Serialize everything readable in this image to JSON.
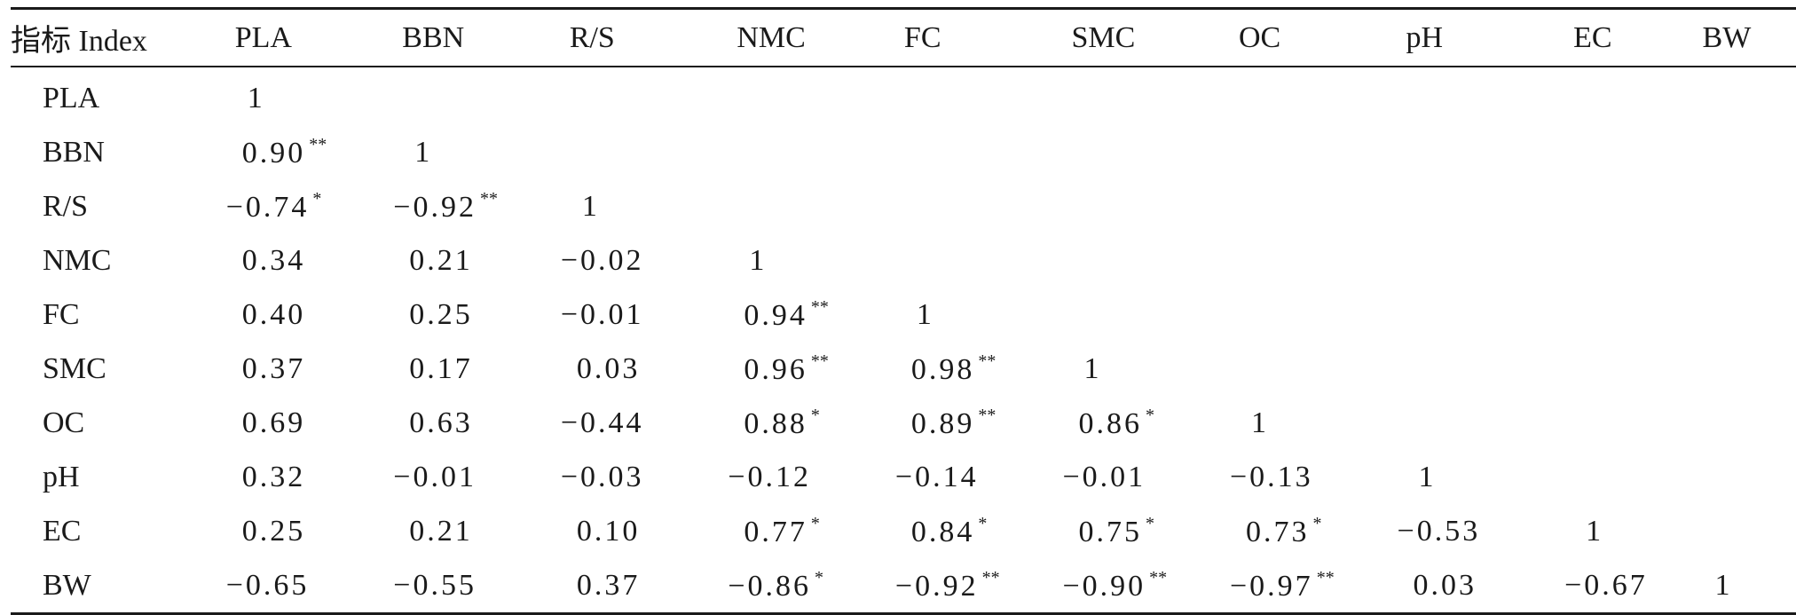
{
  "table": {
    "columns": [
      "指标 Index",
      "PLA",
      "BBN",
      "R/S",
      "NMC",
      "FC",
      "SMC",
      "OC",
      "pH",
      "EC",
      "BW"
    ],
    "rows": [
      {
        "label": "PLA",
        "cells": [
          [
            "1",
            ""
          ],
          [
            "",
            ""
          ],
          [
            "",
            ""
          ],
          [
            "",
            ""
          ],
          [
            "",
            ""
          ],
          [
            "",
            ""
          ],
          [
            "",
            ""
          ],
          [
            "",
            ""
          ],
          [
            "",
            ""
          ],
          [
            "",
            ""
          ]
        ]
      },
      {
        "label": "BBN",
        "cells": [
          [
            "0.90",
            "**"
          ],
          [
            "1",
            ""
          ],
          [
            "",
            ""
          ],
          [
            "",
            ""
          ],
          [
            "",
            ""
          ],
          [
            "",
            ""
          ],
          [
            "",
            ""
          ],
          [
            "",
            ""
          ],
          [
            "",
            ""
          ],
          [
            "",
            ""
          ]
        ]
      },
      {
        "label": "R/S",
        "cells": [
          [
            "−0.74",
            "*"
          ],
          [
            "−0.92",
            "**"
          ],
          [
            "1",
            ""
          ],
          [
            "",
            ""
          ],
          [
            "",
            ""
          ],
          [
            "",
            ""
          ],
          [
            "",
            ""
          ],
          [
            "",
            ""
          ],
          [
            "",
            ""
          ],
          [
            "",
            ""
          ]
        ]
      },
      {
        "label": "NMC",
        "cells": [
          [
            "0.34",
            ""
          ],
          [
            "0.21",
            ""
          ],
          [
            "−0.02",
            ""
          ],
          [
            "1",
            ""
          ],
          [
            "",
            ""
          ],
          [
            "",
            ""
          ],
          [
            "",
            ""
          ],
          [
            "",
            ""
          ],
          [
            "",
            ""
          ],
          [
            "",
            ""
          ]
        ]
      },
      {
        "label": "FC",
        "cells": [
          [
            "0.40",
            ""
          ],
          [
            "0.25",
            ""
          ],
          [
            "−0.01",
            ""
          ],
          [
            "0.94",
            "**"
          ],
          [
            "1",
            ""
          ],
          [
            "",
            ""
          ],
          [
            "",
            ""
          ],
          [
            "",
            ""
          ],
          [
            "",
            ""
          ],
          [
            "",
            ""
          ]
        ]
      },
      {
        "label": "SMC",
        "cells": [
          [
            "0.37",
            ""
          ],
          [
            "0.17",
            ""
          ],
          [
            "0.03",
            ""
          ],
          [
            "0.96",
            "**"
          ],
          [
            "0.98",
            "**"
          ],
          [
            "1",
            ""
          ],
          [
            "",
            ""
          ],
          [
            "",
            ""
          ],
          [
            "",
            ""
          ],
          [
            "",
            ""
          ]
        ]
      },
      {
        "label": "OC",
        "cells": [
          [
            "0.69",
            ""
          ],
          [
            "0.63",
            ""
          ],
          [
            "−0.44",
            ""
          ],
          [
            "0.88",
            "*"
          ],
          [
            "0.89",
            "**"
          ],
          [
            "0.86",
            "*"
          ],
          [
            "1",
            ""
          ],
          [
            "",
            ""
          ],
          [
            "",
            ""
          ],
          [
            "",
            ""
          ]
        ]
      },
      {
        "label": "pH",
        "cells": [
          [
            "0.32",
            ""
          ],
          [
            "−0.01",
            ""
          ],
          [
            "−0.03",
            ""
          ],
          [
            "−0.12",
            ""
          ],
          [
            "−0.14",
            ""
          ],
          [
            "−0.01",
            ""
          ],
          [
            "−0.13",
            ""
          ],
          [
            "1",
            ""
          ],
          [
            "",
            ""
          ],
          [
            "",
            ""
          ]
        ]
      },
      {
        "label": "EC",
        "cells": [
          [
            "0.25",
            ""
          ],
          [
            "0.21",
            ""
          ],
          [
            "0.10",
            ""
          ],
          [
            "0.77",
            "*"
          ],
          [
            "0.84",
            "*"
          ],
          [
            "0.75",
            "*"
          ],
          [
            "0.73",
            "*"
          ],
          [
            "−0.53",
            ""
          ],
          [
            "1",
            ""
          ],
          [
            "",
            ""
          ]
        ]
      },
      {
        "label": "BW",
        "cells": [
          [
            "−0.65",
            ""
          ],
          [
            "−0.55",
            ""
          ],
          [
            "0.37",
            ""
          ],
          [
            "−0.86",
            "*"
          ],
          [
            "−0.92",
            "**"
          ],
          [
            "−0.90",
            "**"
          ],
          [
            "−0.97",
            "**"
          ],
          [
            "0.03",
            ""
          ],
          [
            "−0.67",
            ""
          ],
          [
            "1",
            ""
          ]
        ]
      }
    ]
  }
}
